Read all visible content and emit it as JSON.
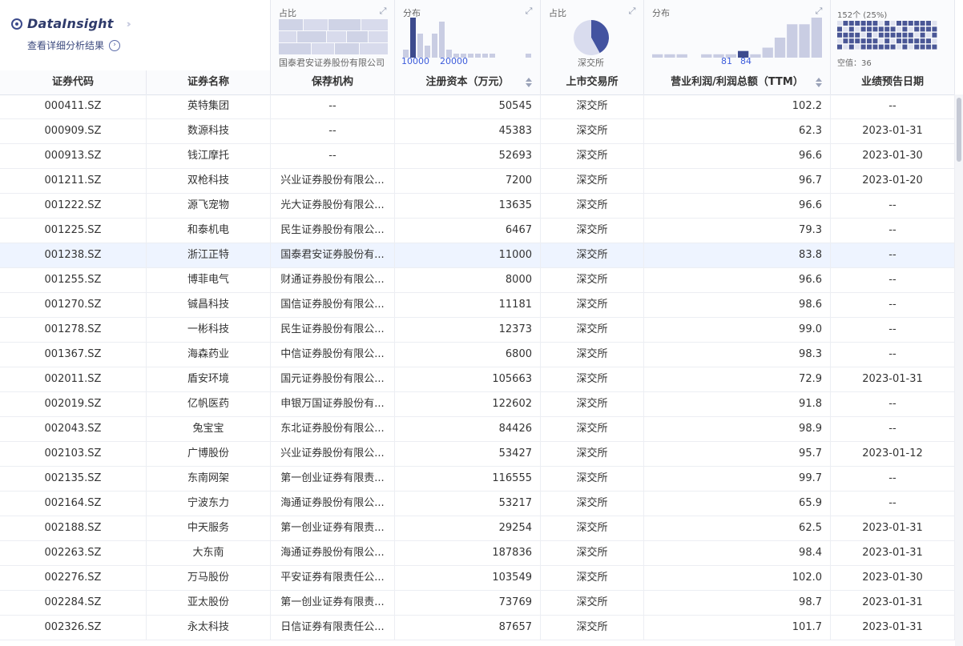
{
  "brand": {
    "name": "DataInsight",
    "subtitle": "查看详细分析结果"
  },
  "summary": {
    "col3": {
      "label": "占比",
      "note": "国泰君安证券股份有限公司"
    },
    "col4": {
      "label": "分布",
      "axis_labels": [
        "10000",
        "20000"
      ],
      "values": [
        2,
        10,
        6,
        3,
        6,
        9,
        2,
        1,
        1,
        1,
        1,
        1,
        1,
        0,
        0,
        0,
        0,
        1
      ]
    },
    "col5": {
      "label": "占比",
      "note": "深交所",
      "slices": [
        0.42,
        0.58
      ]
    },
    "col6": {
      "label": "分布",
      "axis_labels": [
        "81",
        "84"
      ],
      "values": [
        1,
        1,
        1,
        0,
        1,
        1,
        1,
        2,
        1,
        3,
        6,
        10,
        10,
        12
      ]
    },
    "col7": {
      "top": "152个 (25%)",
      "bottom": "空值：36"
    }
  },
  "columns": [
    {
      "key": "code",
      "label": "证券代码"
    },
    {
      "key": "name",
      "label": "证券名称"
    },
    {
      "key": "broker",
      "label": "保荐机构"
    },
    {
      "key": "capital",
      "label": "注册资本（万元）"
    },
    {
      "key": "exchange",
      "label": "上市交易所"
    },
    {
      "key": "ratio",
      "label": "营业利润/利润总额（TTM）"
    },
    {
      "key": "date",
      "label": "业绩预告日期"
    }
  ],
  "rows": [
    {
      "code": "000411.SZ",
      "name": "英特集团",
      "broker": "--",
      "capital": "50545",
      "exchange": "深交所",
      "ratio": "102.2",
      "date": "--"
    },
    {
      "code": "000909.SZ",
      "name": "数源科技",
      "broker": "--",
      "capital": "45383",
      "exchange": "深交所",
      "ratio": "62.3",
      "date": "2023-01-31"
    },
    {
      "code": "000913.SZ",
      "name": "钱江摩托",
      "broker": "--",
      "capital": "52693",
      "exchange": "深交所",
      "ratio": "96.6",
      "date": "2023-01-30"
    },
    {
      "code": "001211.SZ",
      "name": "双枪科技",
      "broker": "兴业证券股份有限公...",
      "capital": "7200",
      "exchange": "深交所",
      "ratio": "96.7",
      "date": "2023-01-20"
    },
    {
      "code": "001222.SZ",
      "name": "源飞宠物",
      "broker": "光大证券股份有限公...",
      "capital": "13635",
      "exchange": "深交所",
      "ratio": "96.6",
      "date": "--"
    },
    {
      "code": "001225.SZ",
      "name": "和泰机电",
      "broker": "民生证券股份有限公...",
      "capital": "6467",
      "exchange": "深交所",
      "ratio": "79.3",
      "date": "--"
    },
    {
      "code": "001238.SZ",
      "name": "浙江正特",
      "broker": "国泰君安证券股份有...",
      "capital": "11000",
      "exchange": "深交所",
      "ratio": "83.8",
      "date": "--"
    },
    {
      "code": "001255.SZ",
      "name": "博菲电气",
      "broker": "财通证券股份有限公...",
      "capital": "8000",
      "exchange": "深交所",
      "ratio": "96.6",
      "date": "--"
    },
    {
      "code": "001270.SZ",
      "name": "铖昌科技",
      "broker": "国信证券股份有限公...",
      "capital": "11181",
      "exchange": "深交所",
      "ratio": "98.6",
      "date": "--"
    },
    {
      "code": "001278.SZ",
      "name": "一彬科技",
      "broker": "民生证券股份有限公...",
      "capital": "12373",
      "exchange": "深交所",
      "ratio": "99.0",
      "date": "--"
    },
    {
      "code": "001367.SZ",
      "name": "海森药业",
      "broker": "中信证券股份有限公...",
      "capital": "6800",
      "exchange": "深交所",
      "ratio": "98.3",
      "date": "--"
    },
    {
      "code": "002011.SZ",
      "name": "盾安环境",
      "broker": "国元证券股份有限公...",
      "capital": "105663",
      "exchange": "深交所",
      "ratio": "72.9",
      "date": "2023-01-31"
    },
    {
      "code": "002019.SZ",
      "name": "亿帆医药",
      "broker": "申银万国证券股份有...",
      "capital": "122602",
      "exchange": "深交所",
      "ratio": "91.8",
      "date": "--"
    },
    {
      "code": "002043.SZ",
      "name": "兔宝宝",
      "broker": "东北证券股份有限公...",
      "capital": "84426",
      "exchange": "深交所",
      "ratio": "98.9",
      "date": "--"
    },
    {
      "code": "002103.SZ",
      "name": "广博股份",
      "broker": "兴业证券股份有限公...",
      "capital": "53427",
      "exchange": "深交所",
      "ratio": "95.7",
      "date": "2023-01-12"
    },
    {
      "code": "002135.SZ",
      "name": "东南网架",
      "broker": "第一创业证券有限责...",
      "capital": "116555",
      "exchange": "深交所",
      "ratio": "99.7",
      "date": "--"
    },
    {
      "code": "002164.SZ",
      "name": "宁波东力",
      "broker": "海通证券股份有限公...",
      "capital": "53217",
      "exchange": "深交所",
      "ratio": "65.9",
      "date": "--"
    },
    {
      "code": "002188.SZ",
      "name": "中天服务",
      "broker": "第一创业证券有限责...",
      "capital": "29254",
      "exchange": "深交所",
      "ratio": "62.5",
      "date": "2023-01-31"
    },
    {
      "code": "002263.SZ",
      "name": "大东南",
      "broker": "海通证券股份有限公...",
      "capital": "187836",
      "exchange": "深交所",
      "ratio": "98.4",
      "date": "2023-01-31"
    },
    {
      "code": "002276.SZ",
      "name": "万马股份",
      "broker": "平安证券有限责任公...",
      "capital": "103549",
      "exchange": "深交所",
      "ratio": "102.0",
      "date": "2023-01-30"
    },
    {
      "code": "002284.SZ",
      "name": "亚太股份",
      "broker": "第一创业证券有限责...",
      "capital": "73769",
      "exchange": "深交所",
      "ratio": "98.7",
      "date": "2023-01-31"
    },
    {
      "code": "002326.SZ",
      "name": "永太科技",
      "broker": "日信证券有限责任公...",
      "capital": "87657",
      "exchange": "深交所",
      "ratio": "101.7",
      "date": "2023-01-31"
    }
  ],
  "highlighted_row": 6,
  "colors": {
    "accent": "#3b4a8c",
    "bar": "#c9cde3",
    "bar_hl": "#3d4b8e",
    "pie_main": "#4353a0",
    "pie_rest": "#d9dcee",
    "row_hl": "#eef4ff"
  }
}
